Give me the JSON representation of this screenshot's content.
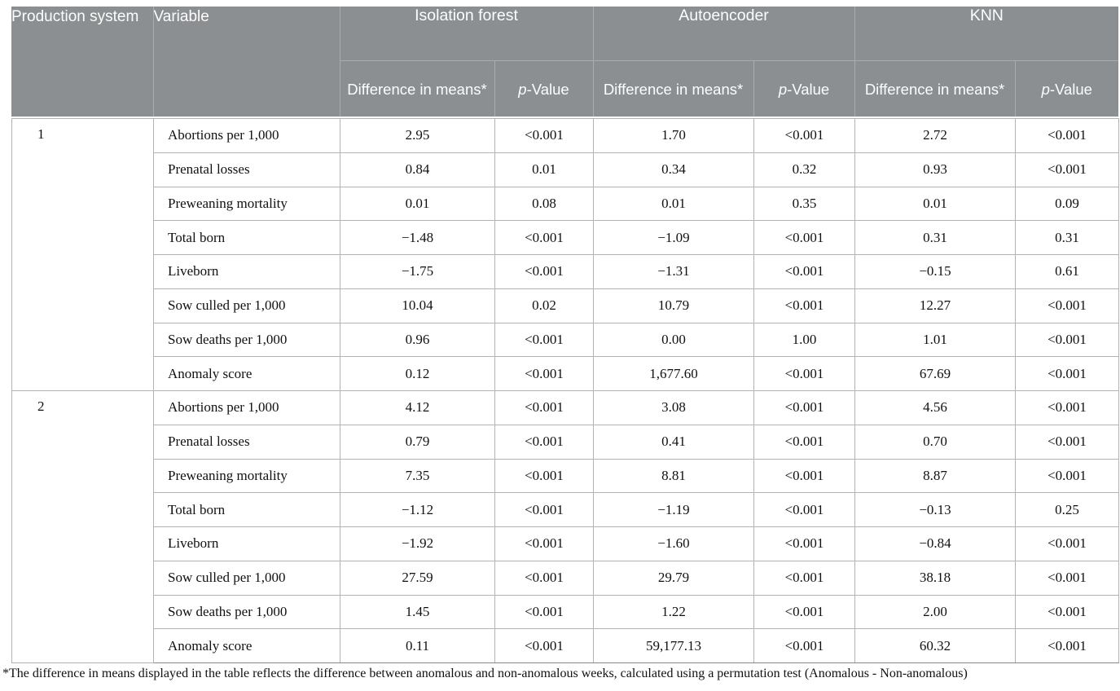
{
  "colors": {
    "header_bg": "#8b8f92",
    "header_divider": "#a9acae",
    "header_text": "#fdfdfd",
    "body_grid": "#b3b3b3",
    "body_bottom_border": "#85898c",
    "text": "#111111"
  },
  "table": {
    "header": {
      "production_system": "Production system",
      "variable": "Variable",
      "groups": [
        "Isolation forest",
        "Autoencoder",
        "KNN"
      ],
      "sub_diff": "Difference in means*",
      "sub_p": {
        "italic": "p",
        "rest": "-Value"
      }
    },
    "systems": [
      {
        "label": "1",
        "rows": [
          {
            "variable": "Abortions per 1,000",
            "values": [
              "2.95",
              "<0.001",
              "1.70",
              "<0.001",
              "2.72",
              "<0.001"
            ]
          },
          {
            "variable": "Prenatal losses",
            "values": [
              "0.84",
              "0.01",
              "0.34",
              "0.32",
              "0.93",
              "<0.001"
            ]
          },
          {
            "variable": "Preweaning mortality",
            "values": [
              "0.01",
              "0.08",
              "0.01",
              "0.35",
              "0.01",
              "0.09"
            ]
          },
          {
            "variable": "Total born",
            "values": [
              "−1.48",
              "<0.001",
              "−1.09",
              "<0.001",
              "0.31",
              "0.31"
            ]
          },
          {
            "variable": "Liveborn",
            "values": [
              "−1.75",
              "<0.001",
              "−1.31",
              "<0.001",
              "−0.15",
              "0.61"
            ]
          },
          {
            "variable": "Sow culled per 1,000",
            "values": [
              "10.04",
              "0.02",
              "10.79",
              "<0.001",
              "12.27",
              "<0.001"
            ]
          },
          {
            "variable": "Sow deaths per 1,000",
            "values": [
              "0.96",
              "<0.001",
              "0.00",
              "1.00",
              "1.01",
              "<0.001"
            ]
          },
          {
            "variable": "Anomaly score",
            "values": [
              "0.12",
              "<0.001",
              "1,677.60",
              "<0.001",
              "67.69",
              "<0.001"
            ]
          }
        ]
      },
      {
        "label": "2",
        "rows": [
          {
            "variable": "Abortions per 1,000",
            "values": [
              "4.12",
              "<0.001",
              "3.08",
              "<0.001",
              "4.56",
              "<0.001"
            ]
          },
          {
            "variable": "Prenatal losses",
            "values": [
              "0.79",
              "<0.001",
              "0.41",
              "<0.001",
              "0.70",
              "<0.001"
            ]
          },
          {
            "variable": "Preweaning mortality",
            "values": [
              "7.35",
              "<0.001",
              "8.81",
              "<0.001",
              "8.87",
              "<0.001"
            ]
          },
          {
            "variable": "Total born",
            "values": [
              "−1.12",
              "<0.001",
              "−1.19",
              "<0.001",
              "−0.13",
              "0.25"
            ]
          },
          {
            "variable": "Liveborn",
            "values": [
              "−1.92",
              "<0.001",
              "−1.60",
              "<0.001",
              "−0.84",
              "<0.001"
            ]
          },
          {
            "variable": "Sow culled per 1,000",
            "values": [
              "27.59",
              "<0.001",
              "29.79",
              "<0.001",
              "38.18",
              "<0.001"
            ]
          },
          {
            "variable": "Sow deaths per 1,000",
            "values": [
              "1.45",
              "<0.001",
              "1.22",
              "<0.001",
              "2.00",
              "<0.001"
            ]
          },
          {
            "variable": "Anomaly score",
            "values": [
              "0.11",
              "<0.001",
              "59,177.13",
              "<0.001",
              "60.32",
              "<0.001"
            ]
          }
        ]
      }
    ],
    "footnote": "*The difference in means displayed in the table reflects the difference between anomalous and non-anomalous weeks, calculated using a permutation test (Anomalous - Non-anomalous)"
  }
}
